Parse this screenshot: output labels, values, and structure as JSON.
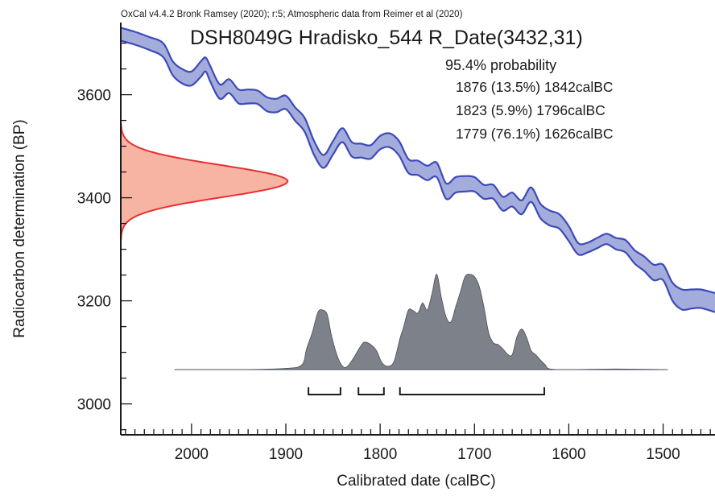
{
  "chart_data": {
    "type": "area",
    "header": "OxCal v4.4.2 Bronk Ramsey (2020); r:5; Atmospheric data from Reimer et al (2020)",
    "title": "DSH8049G Hradisko_544 R_Date(3432,31)",
    "probability_heading": "95.4% probability",
    "ranges": [
      {
        "text": "1876 (13.5%) 1842calBC",
        "from": 1876,
        "to": 1842,
        "prob": 13.5
      },
      {
        "text": "1823 (5.9%) 1796calBC",
        "from": 1823,
        "to": 1796,
        "prob": 5.9
      },
      {
        "text": "1779 (76.1%) 1626calBC",
        "from": 1779,
        "to": 1626,
        "prob": 76.1
      }
    ],
    "xlabel": "Calibrated date (calBC)",
    "ylabel": "Radiocarbon determination (BP)",
    "xlim": [
      2075,
      1445
    ],
    "ylim": [
      2940,
      3740
    ],
    "xticks": [
      2000,
      1900,
      1800,
      1700,
      1600,
      1500
    ],
    "yticks": [
      3000,
      3200,
      3400,
      3600
    ],
    "colors": {
      "curve_fill": "#a4acdc",
      "curve_line": "#3c4ab8",
      "radiocarbon_fill": "#f7b4a3",
      "radiocarbon_line": "#e63131",
      "posterior_fill": "#7d8189",
      "frame": "#1a1a1a"
    },
    "radiocarbon_measurement": {
      "mean_bp": 3432,
      "sd": 31,
      "peak_x": 1898
    },
    "calibration_curve": {
      "x": [
        2075,
        2060,
        2045,
        2030,
        2020,
        2010,
        2000,
        1990,
        1985,
        1980,
        1970,
        1960,
        1950,
        1940,
        1930,
        1920,
        1910,
        1900,
        1890,
        1880,
        1870,
        1860,
        1850,
        1840,
        1830,
        1820,
        1810,
        1800,
        1790,
        1780,
        1770,
        1760,
        1750,
        1740,
        1730,
        1720,
        1710,
        1700,
        1690,
        1680,
        1670,
        1660,
        1650,
        1640,
        1630,
        1620,
        1610,
        1600,
        1590,
        1580,
        1570,
        1560,
        1550,
        1540,
        1530,
        1520,
        1510,
        1500,
        1490,
        1480,
        1470,
        1460,
        1445
      ],
      "upper": [
        3730,
        3722,
        3712,
        3700,
        3665,
        3650,
        3645,
        3665,
        3672,
        3655,
        3620,
        3630,
        3610,
        3610,
        3608,
        3595,
        3592,
        3598,
        3575,
        3555,
        3510,
        3483,
        3510,
        3535,
        3508,
        3505,
        3502,
        3520,
        3525,
        3510,
        3475,
        3472,
        3462,
        3468,
        3428,
        3440,
        3442,
        3440,
        3425,
        3425,
        3402,
        3410,
        3395,
        3420,
        3388,
        3375,
        3368,
        3345,
        3312,
        3313,
        3322,
        3330,
        3322,
        3318,
        3298,
        3286,
        3270,
        3270,
        3235,
        3222,
        3222,
        3222,
        3215
      ],
      "lower": [
        3705,
        3697,
        3687,
        3673,
        3638,
        3622,
        3618,
        3635,
        3645,
        3625,
        3592,
        3603,
        3583,
        3583,
        3582,
        3568,
        3566,
        3572,
        3549,
        3528,
        3483,
        3458,
        3484,
        3508,
        3480,
        3478,
        3476,
        3494,
        3498,
        3482,
        3448,
        3444,
        3434,
        3440,
        3398,
        3410,
        3412,
        3412,
        3398,
        3398,
        3375,
        3383,
        3368,
        3392,
        3360,
        3346,
        3340,
        3316,
        3290,
        3294,
        3302,
        3310,
        3300,
        3294,
        3272,
        3258,
        3240,
        3240,
        3200,
        3183,
        3185,
        3186,
        3178
      ]
    },
    "posterior": {
      "x": [
        2018,
        1950,
        1900,
        1883,
        1878,
        1872,
        1866,
        1861,
        1856,
        1852,
        1846,
        1840,
        1835,
        1828,
        1822,
        1817,
        1810,
        1804,
        1799,
        1795,
        1790,
        1785,
        1779,
        1775,
        1770,
        1765,
        1760,
        1755,
        1750,
        1745,
        1740,
        1735,
        1730,
        1725,
        1720,
        1715,
        1710,
        1705,
        1700,
        1695,
        1690,
        1685,
        1680,
        1675,
        1670,
        1665,
        1660,
        1655,
        1650,
        1645,
        1640,
        1635,
        1630,
        1625,
        1620,
        1600,
        1550,
        1495
      ],
      "height": [
        0,
        0,
        0.02,
        0.08,
        0.35,
        0.62,
        0.96,
        1.0,
        0.92,
        0.6,
        0.25,
        0.06,
        0.05,
        0.2,
        0.36,
        0.46,
        0.42,
        0.32,
        0.14,
        0.07,
        0.06,
        0.15,
        0.52,
        0.72,
        1.0,
        0.99,
        0.95,
        1.12,
        1.0,
        1.28,
        1.6,
        1.2,
        0.88,
        0.8,
        1.05,
        1.3,
        1.56,
        1.6,
        1.56,
        1.4,
        1.05,
        0.62,
        0.45,
        0.42,
        0.35,
        0.26,
        0.25,
        0.55,
        0.68,
        0.55,
        0.32,
        0.25,
        0.16,
        0.08,
        0.01,
        0,
        0.01,
        0
      ]
    }
  }
}
